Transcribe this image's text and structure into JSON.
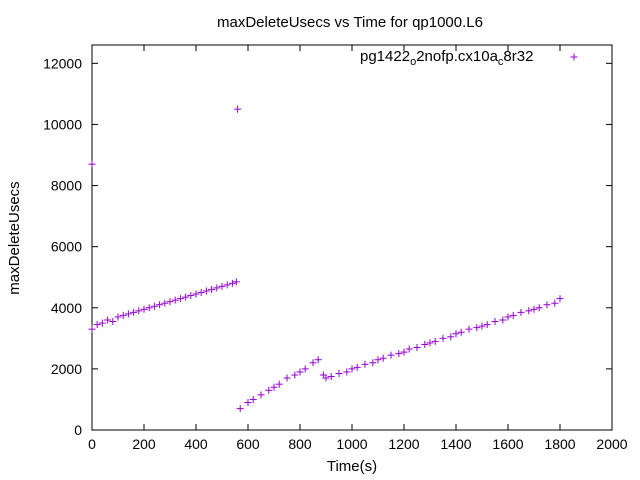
{
  "chart_data": {
    "type": "scatter",
    "title": "maxDeleteUsecs vs Time for qp1000.L6",
    "xlabel": "Time(s)",
    "ylabel": "maxDeleteUsecs",
    "xlim": [
      0,
      2000
    ],
    "ylim": [
      0,
      12600
    ],
    "x_ticks": [
      "0",
      "200",
      "400",
      "600",
      "800",
      "1000",
      "1200",
      "1400",
      "1600",
      "1800",
      "2000"
    ],
    "y_ticks": [
      "0",
      "2000",
      "4000",
      "6000",
      "8000",
      "10000",
      "12000"
    ],
    "grid": false,
    "legend_position": "top-right",
    "marker": "+",
    "color": "#9400d3",
    "legend": {
      "base1": "pg1422",
      "sub1": "o",
      "mid": "2nofp.cx10a",
      "sub2": "c",
      "tail": "8r32"
    },
    "series": [
      {
        "name": "pg1422_o2nofp.cx10a_c8r32",
        "points": [
          [
            0,
            8700
          ],
          [
            0,
            3300
          ],
          [
            20,
            3450
          ],
          [
            40,
            3500
          ],
          [
            60,
            3600
          ],
          [
            80,
            3550
          ],
          [
            100,
            3700
          ],
          [
            120,
            3750
          ],
          [
            140,
            3800
          ],
          [
            160,
            3850
          ],
          [
            180,
            3900
          ],
          [
            200,
            3950
          ],
          [
            220,
            4000
          ],
          [
            240,
            4050
          ],
          [
            260,
            4100
          ],
          [
            280,
            4150
          ],
          [
            300,
            4200
          ],
          [
            320,
            4250
          ],
          [
            340,
            4300
          ],
          [
            360,
            4350
          ],
          [
            380,
            4400
          ],
          [
            400,
            4450
          ],
          [
            420,
            4500
          ],
          [
            440,
            4550
          ],
          [
            460,
            4600
          ],
          [
            480,
            4650
          ],
          [
            500,
            4700
          ],
          [
            520,
            4750
          ],
          [
            540,
            4800
          ],
          [
            555,
            4850
          ],
          [
            560,
            10500
          ],
          [
            570,
            700
          ],
          [
            600,
            900
          ],
          [
            620,
            1000
          ],
          [
            650,
            1150
          ],
          [
            680,
            1300
          ],
          [
            700,
            1400
          ],
          [
            720,
            1500
          ],
          [
            750,
            1700
          ],
          [
            780,
            1800
          ],
          [
            800,
            1900
          ],
          [
            820,
            2000
          ],
          [
            850,
            2200
          ],
          [
            870,
            2300
          ],
          [
            890,
            1800
          ],
          [
            900,
            1700
          ],
          [
            920,
            1750
          ],
          [
            950,
            1850
          ],
          [
            980,
            1900
          ],
          [
            1000,
            2000
          ],
          [
            1020,
            2050
          ],
          [
            1050,
            2150
          ],
          [
            1080,
            2200
          ],
          [
            1100,
            2300
          ],
          [
            1120,
            2350
          ],
          [
            1150,
            2450
          ],
          [
            1180,
            2500
          ],
          [
            1200,
            2550
          ],
          [
            1220,
            2650
          ],
          [
            1250,
            2700
          ],
          [
            1280,
            2800
          ],
          [
            1300,
            2850
          ],
          [
            1320,
            2900
          ],
          [
            1350,
            3000
          ],
          [
            1380,
            3050
          ],
          [
            1400,
            3150
          ],
          [
            1420,
            3200
          ],
          [
            1450,
            3300
          ],
          [
            1480,
            3350
          ],
          [
            1500,
            3400
          ],
          [
            1520,
            3450
          ],
          [
            1550,
            3550
          ],
          [
            1580,
            3600
          ],
          [
            1600,
            3700
          ],
          [
            1620,
            3750
          ],
          [
            1650,
            3850
          ],
          [
            1680,
            3900
          ],
          [
            1700,
            3950
          ],
          [
            1720,
            4000
          ],
          [
            1750,
            4100
          ],
          [
            1780,
            4150
          ],
          [
            1800,
            4300
          ]
        ]
      }
    ]
  }
}
